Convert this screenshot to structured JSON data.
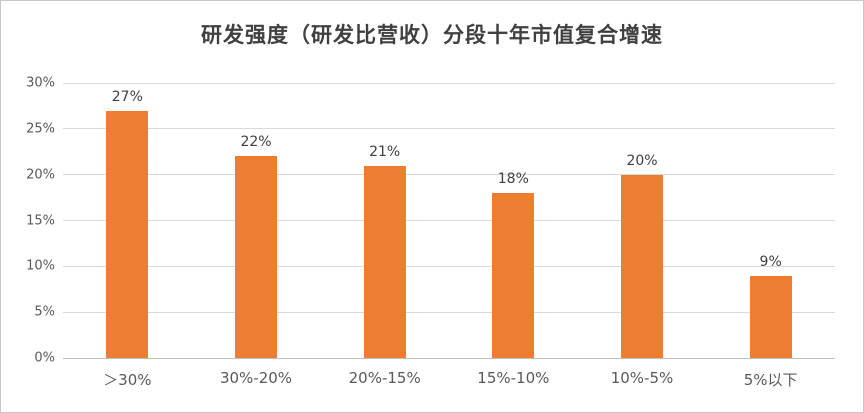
{
  "chart_data": {
    "type": "bar",
    "title": "研发强度（研发比营收）分段十年市值复合增速",
    "categories": [
      "＞30%",
      "30%-20%",
      "20%-15%",
      "15%-10%",
      "10%-5%",
      "5%以下"
    ],
    "values": [
      27,
      22,
      21,
      18,
      20,
      9
    ],
    "value_labels": [
      "27%",
      "22%",
      "21%",
      "18%",
      "20%",
      "9%"
    ],
    "xlabel": "",
    "ylabel": "",
    "ylim": [
      0,
      30
    ],
    "ytick_step": 5,
    "ytick_suffix": "%",
    "grid": true,
    "legend": "none",
    "bar_color": "#ED7D31"
  },
  "colors": {
    "bar": "#ED7D31",
    "gridline": "#D9D9D9",
    "axis_line": "#BFBFBF",
    "axis_text": "#595959",
    "title": "#404040",
    "data_label": "#404040",
    "border": "#C8C8C8",
    "background": "#FFFFFF"
  }
}
